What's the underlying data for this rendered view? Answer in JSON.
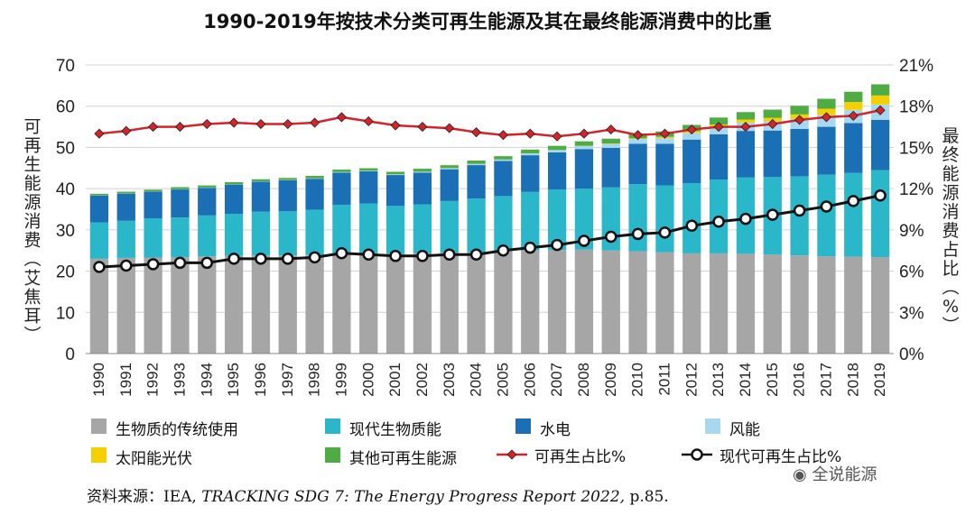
{
  "chart_data": {
    "type": "bar",
    "title": "1990-2019年按技术分类可再生能源及其在最终能源消费中的比重",
    "ylabel": "可再生能源消费（艾焦耳）",
    "y2label": "最终能源消费占比（%）",
    "ylim": [
      0,
      70
    ],
    "y2lim": [
      0,
      21
    ],
    "yticks": [
      "0",
      "10",
      "20",
      "30",
      "40",
      "50",
      "60",
      "70"
    ],
    "y2ticks": [
      "0%",
      "3%",
      "6%",
      "9%",
      "12%",
      "15%",
      "18%",
      "21%"
    ],
    "grid": true,
    "stacked": true,
    "categories": [
      "1990",
      "1991",
      "1992",
      "1993",
      "1994",
      "1995",
      "1996",
      "1997",
      "1998",
      "1999",
      "2000",
      "2001",
      "2002",
      "2003",
      "2004",
      "2005",
      "2006",
      "2007",
      "2008",
      "2009",
      "2010",
      "2011",
      "2012",
      "2013",
      "2014",
      "2015",
      "2016",
      "2017",
      "2018",
      "2019"
    ],
    "series": [
      {
        "name": "生物质的传统使用",
        "color": "#a6a6a6",
        "values": [
          23.0,
          23.2,
          23.3,
          23.4,
          23.6,
          23.7,
          23.8,
          23.8,
          23.9,
          24.2,
          24.3,
          24.2,
          24.3,
          24.5,
          24.6,
          24.8,
          25.0,
          25.1,
          25.2,
          25.0,
          24.8,
          24.6,
          24.3,
          24.3,
          24.2,
          24.0,
          23.8,
          23.6,
          23.5,
          23.4
        ]
      },
      {
        "name": "现代生物质能",
        "color": "#2ab7ca",
        "values": [
          8.8,
          9.0,
          9.5,
          9.6,
          9.9,
          10.2,
          10.6,
          10.7,
          11.0,
          11.9,
          12.1,
          11.6,
          11.9,
          12.5,
          13.0,
          13.4,
          14.2,
          14.7,
          14.8,
          15.3,
          16.3,
          16.2,
          17.0,
          17.9,
          18.5,
          18.8,
          19.2,
          19.8,
          20.3,
          21.1
        ]
      },
      {
        "name": "水电",
        "color": "#1a6fb5",
        "values": [
          6.5,
          6.6,
          6.5,
          6.8,
          6.7,
          7.1,
          7.3,
          7.5,
          7.5,
          7.8,
          7.8,
          7.5,
          7.7,
          7.7,
          8.1,
          8.5,
          8.9,
          9.0,
          9.6,
          9.6,
          9.8,
          10.1,
          10.6,
          11.0,
          11.3,
          11.3,
          11.5,
          11.6,
          12.1,
          12.2
        ]
      },
      {
        "name": "风能",
        "color": "#a8d8f0",
        "values": [
          0.05,
          0.05,
          0.05,
          0.06,
          0.07,
          0.07,
          0.08,
          0.09,
          0.1,
          0.13,
          0.15,
          0.18,
          0.22,
          0.28,
          0.31,
          0.36,
          0.45,
          0.55,
          0.72,
          0.92,
          1.15,
          1.36,
          1.65,
          1.84,
          2.06,
          2.26,
          2.5,
          2.89,
          3.2,
          3.7
        ]
      },
      {
        "name": "太阳能光伏",
        "color": "#f5d000",
        "values": [
          0,
          0,
          0,
          0,
          0,
          0,
          0,
          0,
          0,
          0,
          0,
          0,
          0,
          0,
          0,
          0.01,
          0.02,
          0.03,
          0.06,
          0.1,
          0.15,
          0.3,
          0.4,
          0.5,
          0.7,
          0.8,
          1.0,
          1.5,
          1.9,
          2.2
        ]
      },
      {
        "name": "其他可再生能源",
        "color": "#4fab43",
        "values": [
          0.4,
          0.4,
          0.4,
          0.5,
          0.5,
          0.5,
          0.5,
          0.5,
          0.6,
          0.6,
          0.6,
          0.6,
          0.7,
          0.7,
          0.8,
          0.8,
          0.9,
          1.0,
          1.1,
          1.2,
          1.2,
          1.3,
          1.5,
          1.7,
          1.8,
          2.0,
          2.1,
          2.4,
          2.5,
          2.7
        ]
      }
    ],
    "line_series": [
      {
        "name": "可再生占比%",
        "axis": "right",
        "color": "#d4232a",
        "values": [
          16.0,
          16.2,
          16.5,
          16.5,
          16.7,
          16.8,
          16.7,
          16.7,
          16.8,
          17.2,
          16.9,
          16.6,
          16.5,
          16.4,
          16.1,
          15.9,
          16.0,
          15.8,
          16.0,
          16.3,
          15.9,
          16.0,
          16.3,
          16.5,
          16.5,
          16.7,
          17.0,
          17.2,
          17.3,
          17.7
        ]
      },
      {
        "name": "现代可再生占比%",
        "axis": "right",
        "color": "#111111",
        "values": [
          6.3,
          6.4,
          6.5,
          6.6,
          6.6,
          6.9,
          6.9,
          6.9,
          7.0,
          7.3,
          7.2,
          7.1,
          7.1,
          7.2,
          7.2,
          7.5,
          7.7,
          7.9,
          8.2,
          8.5,
          8.7,
          8.8,
          9.3,
          9.6,
          9.8,
          10.1,
          10.4,
          10.7,
          11.1,
          11.5
        ]
      }
    ]
  },
  "source": {
    "prefix": "资料来源：IEA, ",
    "title_italic": "TRACKING SDG 7: The Energy Progress Report 2022,",
    "suffix": " p.85."
  },
  "watermark": "全说能源"
}
